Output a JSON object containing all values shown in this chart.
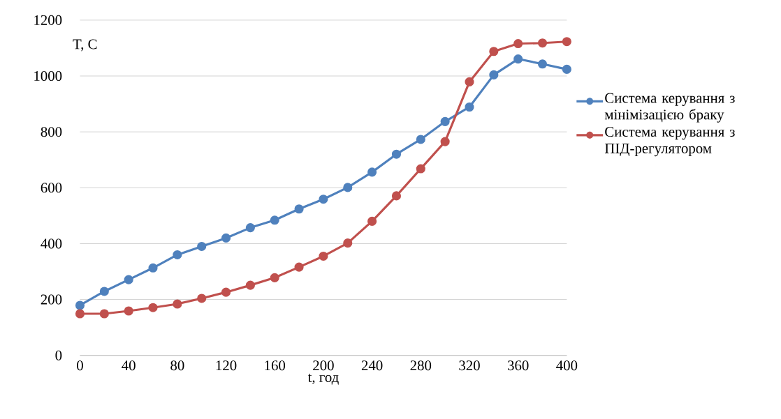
{
  "chart_data": {
    "type": "line",
    "xlabel": "t, год",
    "ylabel": "T, C",
    "x": [
      0,
      20,
      40,
      60,
      80,
      100,
      120,
      140,
      160,
      180,
      200,
      220,
      240,
      260,
      280,
      300,
      320,
      340,
      360,
      380,
      400
    ],
    "series": [
      {
        "name": "Система керування з мінімізацією браку",
        "color": "#4f81bd",
        "values": [
          179,
          229,
          271,
          313,
          360,
          390,
          420,
          457,
          484,
          524,
          559,
          601,
          656,
          720,
          773,
          837,
          889,
          1004,
          1061,
          1043,
          1024
        ]
      },
      {
        "name": "Система керування з ПІД-регулятором",
        "color": "#c0504d",
        "values": [
          149,
          149,
          159,
          171,
          184,
          204,
          226,
          251,
          278,
          316,
          355,
          402,
          480,
          571,
          668,
          765,
          979,
          1088,
          1116,
          1118,
          1123
        ]
      }
    ],
    "xlim": [
      0,
      400
    ],
    "xticks": [
      0,
      40,
      80,
      120,
      160,
      200,
      240,
      280,
      320,
      360,
      400
    ],
    "ylim": [
      0,
      1200
    ],
    "yticks": [
      0,
      200,
      400,
      600,
      800,
      1000,
      1200
    ],
    "grid": "y",
    "legend": "right",
    "marker": "circle",
    "line_style": "solid"
  }
}
